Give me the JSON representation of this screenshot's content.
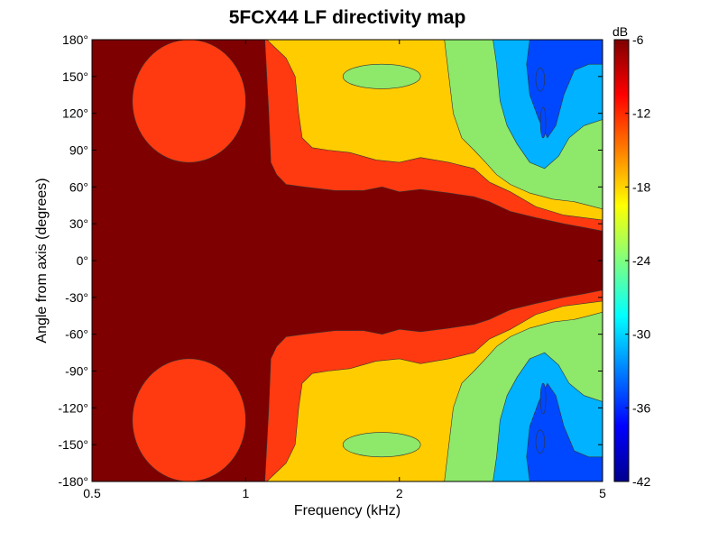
{
  "chart_data": {
    "type": "heatmap",
    "subtype": "filled-contour",
    "title": "5FCX44 LF directivity map",
    "xlabel": "Frequency (kHz)",
    "ylabel": "Angle from axis (degrees)",
    "x_scale": "log",
    "xlim": [
      0.5,
      5
    ],
    "x_ticks": [
      0.5,
      1,
      2,
      5
    ],
    "x_tick_labels": [
      "0.5",
      "1",
      "2",
      "5"
    ],
    "ylim": [
      -180,
      180
    ],
    "y_ticks": [
      180,
      150,
      120,
      90,
      60,
      30,
      0,
      -30,
      -60,
      -90,
      -120,
      -150,
      -180
    ],
    "y_tick_labels": [
      "180°",
      "150°",
      "120°",
      "90°",
      "60°",
      "30°",
      "0°",
      "-30°",
      "-60°",
      "-90°",
      "-120°",
      "-150°",
      "-180°"
    ],
    "symmetric_about_zero": true,
    "colorbar": {
      "label": "dB",
      "range": [
        -42,
        -6
      ],
      "ticks": [
        -6,
        -12,
        -18,
        -24,
        -30,
        -36,
        -42
      ],
      "tick_labels": [
        "-6",
        "-12",
        "-18",
        "-24",
        "-30",
        "-36",
        "-42"
      ],
      "colormap": "jet"
    },
    "contour_levels_db": [
      -6,
      -9,
      -15,
      -21,
      -27,
      -33,
      -39
    ],
    "contour_colors": [
      "#7f0000",
      "#ff3a10",
      "#ffcc00",
      "#8ee86a",
      "#00b2ff",
      "#0048ff",
      "#1c0aa3"
    ],
    "level_boundaries": [
      {
        "level_db": -6,
        "description": "edge of region within -6 dB (angle in degrees vs frequency in kHz, upper half)",
        "points": [
          [
            0.5,
            180
          ],
          [
            1.09,
            180
          ],
          [
            1.1,
            150
          ],
          [
            1.11,
            120
          ],
          [
            1.12,
            80
          ],
          [
            1.15,
            70
          ],
          [
            1.2,
            62
          ],
          [
            1.3,
            60
          ],
          [
            1.5,
            57
          ],
          [
            1.7,
            57
          ],
          [
            1.85,
            60
          ],
          [
            2,
            56
          ],
          [
            2.2,
            58
          ],
          [
            2.5,
            55
          ],
          [
            2.8,
            52
          ],
          [
            3,
            48
          ],
          [
            3.3,
            40
          ],
          [
            3.7,
            35
          ],
          [
            4.2,
            30
          ],
          [
            4.6,
            27
          ],
          [
            5,
            24
          ]
        ]
      },
      {
        "level_db": -9,
        "description": "edge of region within -9 dB, upper half",
        "points": [
          [
            1.1,
            180
          ],
          [
            1.2,
            165
          ],
          [
            1.25,
            150
          ],
          [
            1.27,
            120
          ],
          [
            1.29,
            100
          ],
          [
            1.35,
            92
          ],
          [
            1.45,
            90
          ],
          [
            1.6,
            88
          ],
          [
            1.8,
            82
          ],
          [
            2,
            80
          ],
          [
            2.2,
            84
          ],
          [
            2.5,
            80
          ],
          [
            2.8,
            75
          ],
          [
            3,
            64
          ],
          [
            3.3,
            56
          ],
          [
            3.7,
            44
          ],
          [
            4.2,
            37
          ],
          [
            4.6,
            35
          ],
          [
            5,
            33
          ]
        ]
      },
      {
        "level_db": -15,
        "description": "edge of region within -15 dB, upper half",
        "points": [
          [
            2.45,
            180
          ],
          [
            2.5,
            150
          ],
          [
            2.55,
            120
          ],
          [
            2.65,
            100
          ],
          [
            2.8,
            90
          ],
          [
            2.95,
            80
          ],
          [
            3.1,
            70
          ],
          [
            3.3,
            62
          ],
          [
            3.6,
            55
          ],
          [
            4,
            50
          ],
          [
            4.4,
            48
          ],
          [
            4.7,
            45
          ],
          [
            5,
            42
          ]
        ]
      },
      {
        "level_db": -21,
        "description": "edge of region within -21 dB, upper half (fringes around the blue lobe)",
        "points": [
          [
            3.05,
            180
          ],
          [
            3.1,
            160
          ],
          [
            3.15,
            130
          ],
          [
            3.25,
            110
          ],
          [
            3.4,
            95
          ],
          [
            3.6,
            80
          ],
          [
            3.85,
            75
          ],
          [
            4.1,
            85
          ],
          [
            4.3,
            100
          ],
          [
            4.6,
            110
          ],
          [
            5,
            115
          ]
        ]
      },
      {
        "level_db": -27,
        "description": "edge of region within -27 dB, upper half",
        "points": [
          [
            3.6,
            180
          ],
          [
            3.55,
            160
          ],
          [
            3.6,
            135
          ],
          [
            3.75,
            115
          ],
          [
            3.9,
            100
          ],
          [
            4.05,
            110
          ],
          [
            4.2,
            135
          ],
          [
            4.4,
            155
          ],
          [
            4.7,
            160
          ],
          [
            5,
            160
          ]
        ]
      }
    ],
    "features": [
      {
        "db": -9,
        "description": "red lobe at low frequency",
        "freq_khz": [
          0.6,
          1.0
        ],
        "angle_deg": [
          80,
          180
        ]
      },
      {
        "db": -21,
        "description": "green island inside -15 dB region",
        "freq_khz": [
          1.55,
          2.2
        ],
        "angle_deg": [
          140,
          160
        ]
      },
      {
        "db": -33,
        "description": "deep blue spot",
        "freq_khz": [
          3.7,
          3.85
        ],
        "angle_deg": [
          138,
          157
        ]
      },
      {
        "db": -33,
        "description": "deep blue sliver",
        "freq_khz": [
          3.8,
          3.85
        ],
        "angle_deg": [
          100,
          125
        ]
      }
    ]
  }
}
